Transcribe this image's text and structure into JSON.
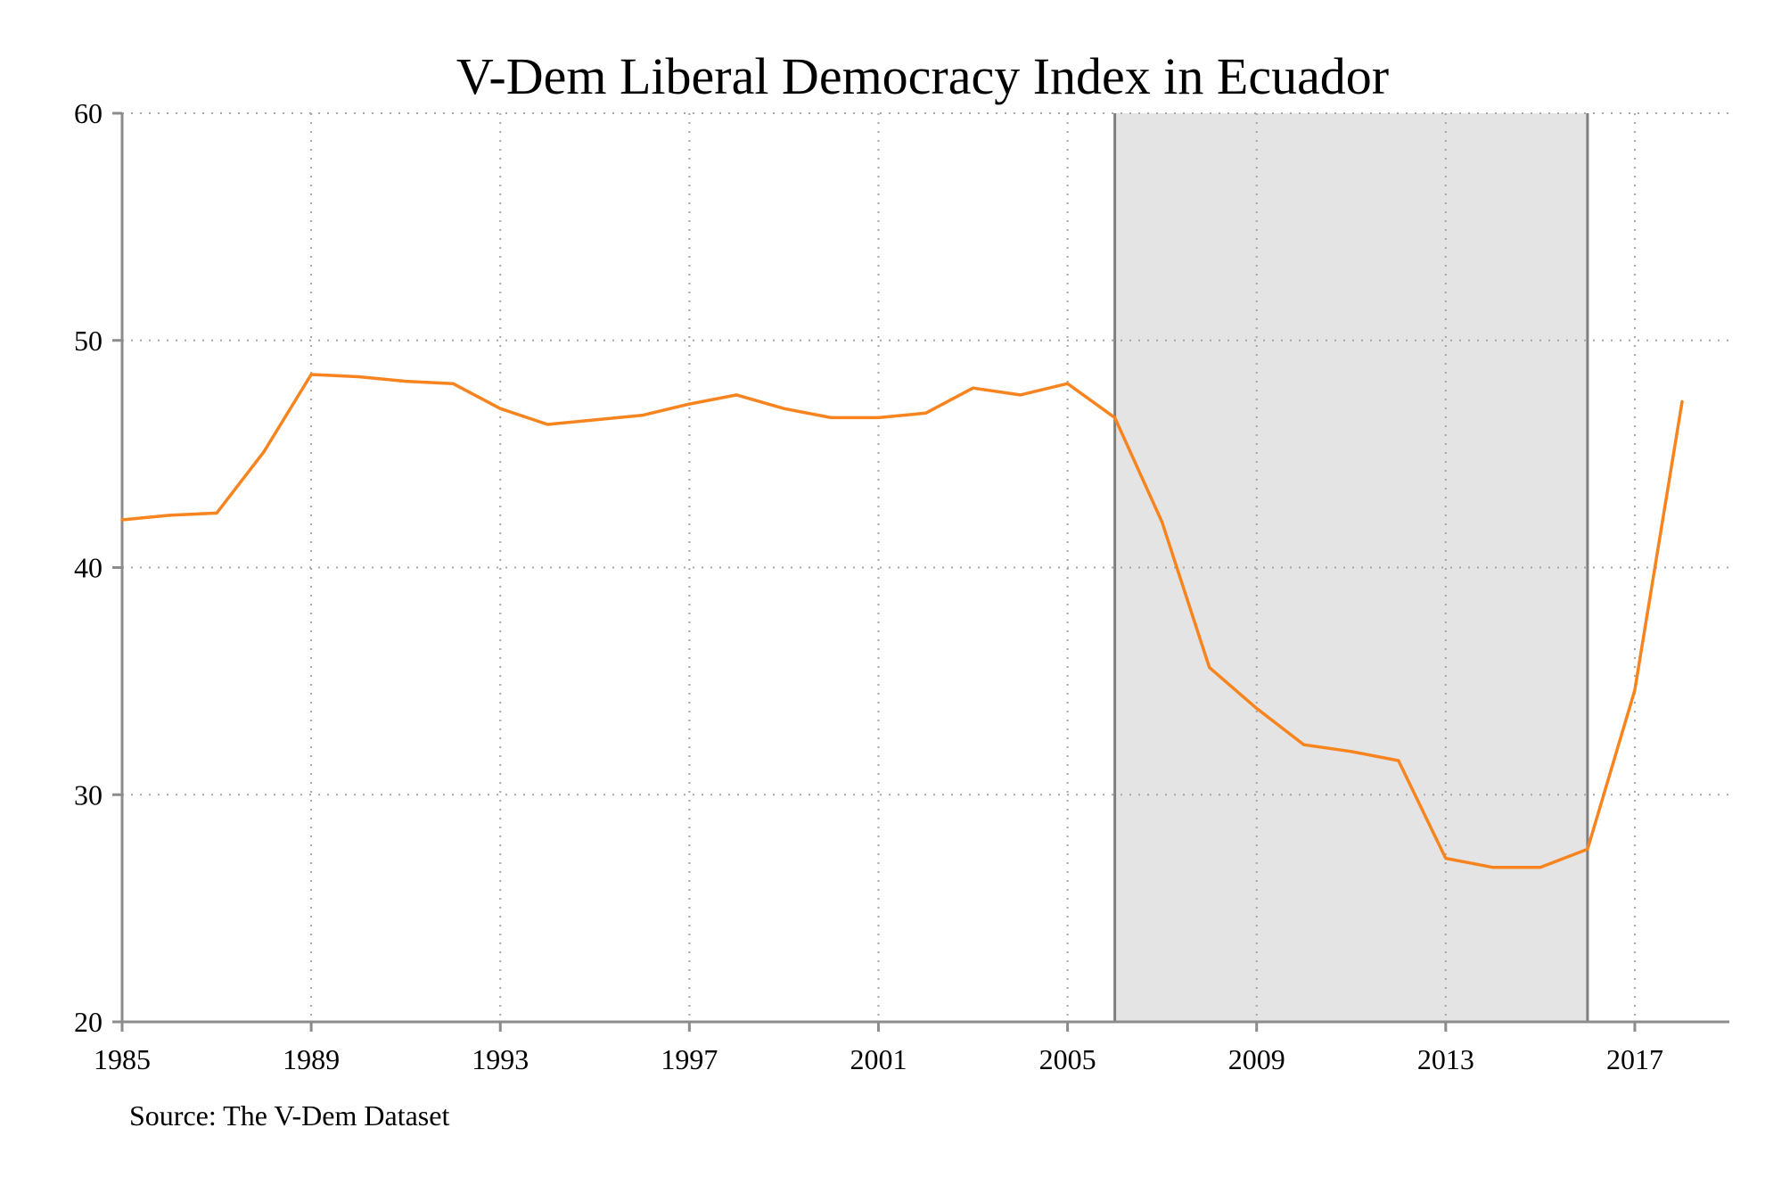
{
  "chart_data": {
    "type": "line",
    "title": "V-Dem Liberal Democracy Index in Ecuador",
    "xlabel": "",
    "ylabel": "",
    "source_note": "Source: The V-Dem Dataset",
    "xlim": [
      1985,
      2019
    ],
    "ylim": [
      20,
      60
    ],
    "x_ticks": [
      1985,
      1989,
      1993,
      1997,
      2001,
      2005,
      2009,
      2013,
      2017
    ],
    "y_ticks": [
      20,
      30,
      40,
      50,
      60
    ],
    "grid": true,
    "shaded_region": {
      "x_start": 2006,
      "x_end": 2016
    },
    "colors": {
      "line": "#f7841f",
      "shade": "#e4e4e4",
      "shade_border": "#7f7f7f",
      "axis": "#8c8c8c",
      "grid": "#a6a6a6",
      "text": "#000000"
    },
    "series": [
      {
        "x": [
          1985,
          1986,
          1987,
          1988,
          1989,
          1990,
          1991,
          1992,
          1993,
          1994,
          1995,
          1996,
          1997,
          1998,
          1999,
          2000,
          2001,
          2002,
          2003,
          2004,
          2005,
          2006,
          2007,
          2008,
          2009,
          2010,
          2011,
          2012,
          2013,
          2014,
          2015,
          2016,
          2017,
          2018
        ],
        "values": [
          42.1,
          42.3,
          42.4,
          45.1,
          48.5,
          48.4,
          48.2,
          48.1,
          47.0,
          46.3,
          46.5,
          46.7,
          47.2,
          47.6,
          47.0,
          46.6,
          46.6,
          46.8,
          47.9,
          47.6,
          48.1,
          46.6,
          42.0,
          35.6,
          33.8,
          32.2,
          31.9,
          31.5,
          27.2,
          26.8,
          26.8,
          27.6,
          34.6,
          47.3
        ]
      }
    ]
  }
}
